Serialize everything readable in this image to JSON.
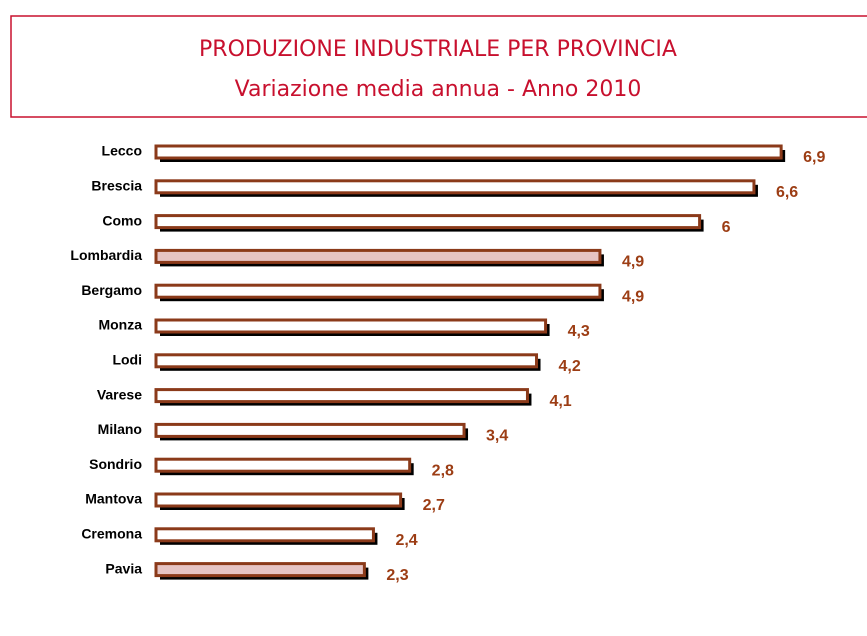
{
  "chart_data": {
    "type": "bar",
    "orientation": "horizontal",
    "title": "PRODUZIONE INDUSTRIALE PER PROVINCIA",
    "subtitle": "Variazione media annua - Anno 2010",
    "categories": [
      "Lecco",
      "Brescia",
      "Como",
      "Lombardia",
      "Bergamo",
      "Monza",
      "Lodi",
      "Varese",
      "Milano",
      "Sondrio",
      "Mantova",
      "Cremona",
      "Pavia"
    ],
    "values": [
      6.9,
      6.6,
      6,
      4.9,
      4.9,
      4.3,
      4.2,
      4.1,
      3.4,
      2.8,
      2.7,
      2.4,
      2.3
    ],
    "value_labels": [
      "6,9",
      "6,6",
      "6",
      "4,9",
      "4,9",
      "4,3",
      "4,2",
      "4,1",
      "3,4",
      "2,8",
      "2,7",
      "2,4",
      "2,3"
    ],
    "color": "#8b3a1a",
    "fills": [
      "#ffffff",
      "#ffffff",
      "#ffffff",
      "#e6c4c4",
      "#ffffff",
      "#ffffff",
      "#ffffff",
      "#ffffff",
      "#ffffff",
      "#ffffff",
      "#ffffff",
      "#ffffff",
      "#e6c4c4"
    ]
  }
}
